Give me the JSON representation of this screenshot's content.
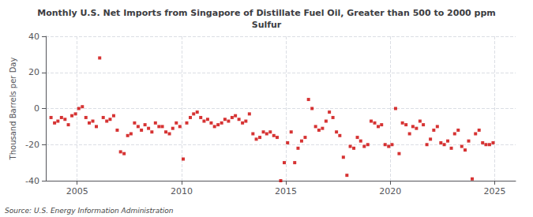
{
  "chart_data": {
    "type": "scatter",
    "title": "Monthly U.S. Net Imports from Singapore of Distillate Fuel Oil, Greater than 500 to 2000 ppm\nSulfur",
    "ylabel": "Thousand Barrels per Day",
    "annotation": "Source: U.S. Energy Information Administration",
    "color": "#cc0000",
    "marker": "square",
    "grid": true,
    "xlim": [
      2003.5,
      2026.0
    ],
    "xticks": [
      2005,
      2010,
      2015,
      2020,
      2025
    ],
    "ylim": [
      -40,
      40
    ],
    "yticks": [
      -40,
      -20,
      0,
      20,
      40
    ],
    "x": [
      2003.75,
      2003.92,
      2004.08,
      2004.25,
      2004.42,
      2004.58,
      2004.75,
      2004.92,
      2005.08,
      2005.25,
      2005.42,
      2005.58,
      2005.75,
      2005.92,
      2006.08,
      2006.25,
      2006.42,
      2006.58,
      2006.75,
      2006.92,
      2007.08,
      2007.25,
      2007.42,
      2007.58,
      2007.75,
      2007.92,
      2008.08,
      2008.25,
      2008.42,
      2008.58,
      2008.75,
      2008.92,
      2009.08,
      2009.25,
      2009.42,
      2009.58,
      2009.75,
      2009.92,
      2010.08,
      2010.25,
      2010.42,
      2010.58,
      2010.75,
      2010.92,
      2011.08,
      2011.25,
      2011.42,
      2011.58,
      2011.75,
      2011.92,
      2012.08,
      2012.25,
      2012.42,
      2012.58,
      2012.75,
      2012.92,
      2013.08,
      2013.25,
      2013.42,
      2013.58,
      2013.75,
      2013.92,
      2014.08,
      2014.25,
      2014.42,
      2014.58,
      2014.75,
      2014.92,
      2015.08,
      2015.25,
      2015.42,
      2015.58,
      2015.75,
      2015.92,
      2016.08,
      2016.25,
      2016.42,
      2016.58,
      2016.75,
      2016.92,
      2017.08,
      2017.25,
      2017.42,
      2017.58,
      2017.75,
      2017.92,
      2018.08,
      2018.25,
      2018.42,
      2018.58,
      2018.75,
      2018.92,
      2019.08,
      2019.25,
      2019.42,
      2019.58,
      2019.75,
      2019.92,
      2020.08,
      2020.25,
      2020.42,
      2020.58,
      2020.75,
      2020.92,
      2021.08,
      2021.25,
      2021.42,
      2021.58,
      2021.75,
      2021.92,
      2022.08,
      2022.25,
      2022.42,
      2022.58,
      2022.75,
      2022.92,
      2023.08,
      2023.25,
      2023.42,
      2023.58,
      2023.75,
      2023.92,
      2024.08,
      2024.25,
      2024.42,
      2024.58,
      2024.75,
      2024.92
    ],
    "values": [
      -5,
      -8,
      -7,
      -5,
      -6,
      -9,
      -4,
      -3,
      0,
      1,
      -5,
      -8,
      -7,
      -10,
      28,
      -5,
      -7,
      -6,
      -4,
      -12,
      -24,
      -25,
      -15,
      -14,
      -8,
      -10,
      -12,
      -9,
      -11,
      -13,
      -8,
      -10,
      -10,
      -13,
      -14,
      -11,
      -8,
      -10,
      -28,
      -8,
      -5,
      -3,
      -2,
      -5,
      -7,
      -6,
      -8,
      -10,
      -9,
      -8,
      -6,
      -7,
      -5,
      -4,
      -6,
      -8,
      -7,
      -3,
      -14,
      -17,
      -16,
      -13,
      -14,
      -13,
      -15,
      -16,
      -40,
      -30,
      -19,
      -13,
      -30,
      -22,
      -18,
      -16,
      5,
      0,
      -10,
      -12,
      -11,
      -7,
      -2,
      -5,
      -13,
      -15,
      -27,
      -37,
      -21,
      -22,
      -16,
      -18,
      -21,
      -20,
      -7,
      -8,
      -10,
      -9,
      -20,
      -21,
      -20,
      0,
      -25,
      -8,
      -9,
      -14,
      -10,
      -11,
      -7,
      -9,
      -20,
      -17,
      -12,
      -10,
      -19,
      -20,
      -18,
      -22,
      -14,
      -12,
      -21,
      -23,
      -18,
      -39,
      -14,
      -12,
      -19,
      -20,
      -20,
      -19
    ]
  }
}
